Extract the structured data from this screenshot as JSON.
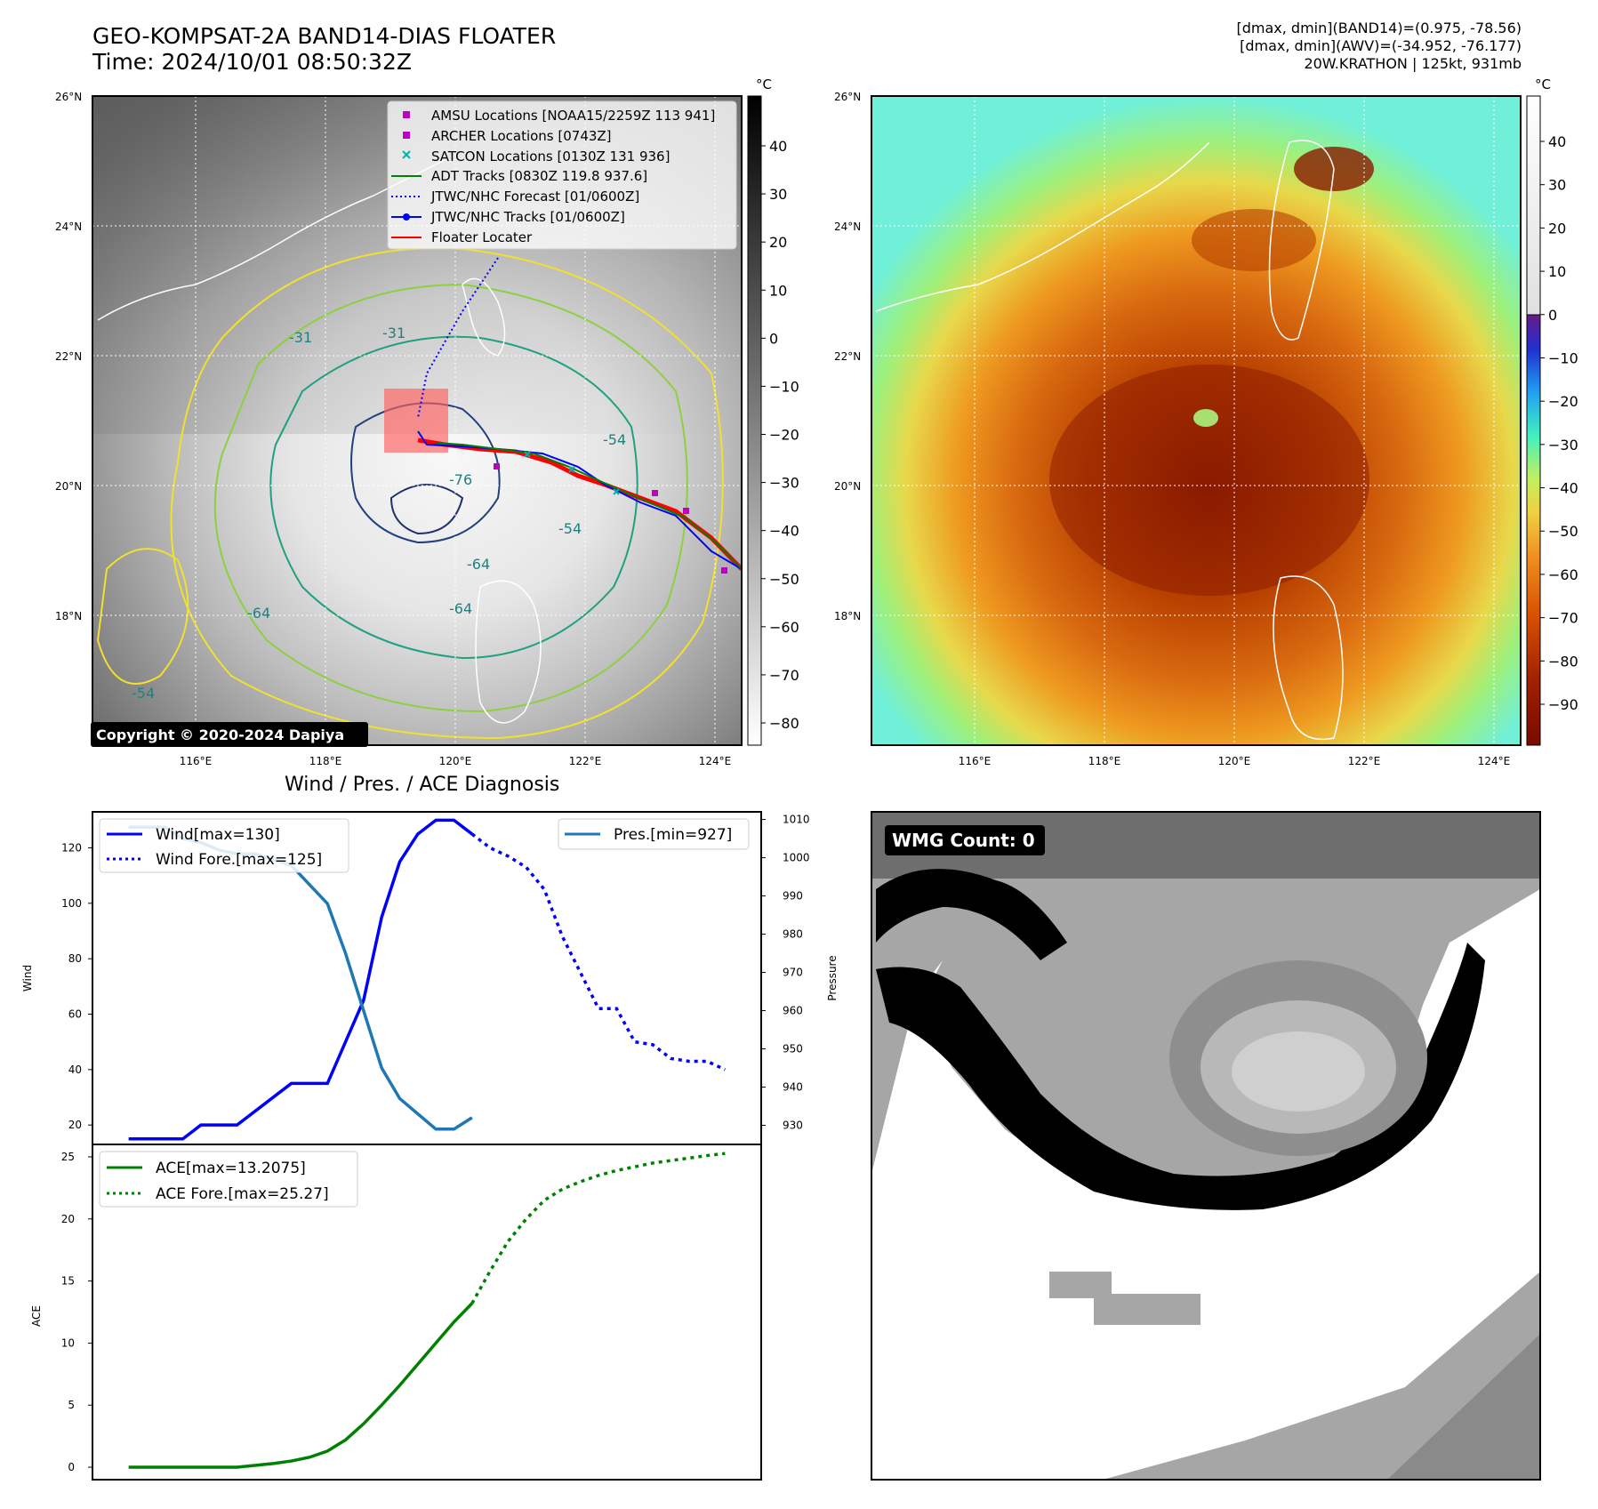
{
  "header": {
    "title_line1": "GEO-KOMPSAT-2A BAND14-DIAS FLOATER",
    "title_line2": "Time: 2024/10/01 08:50:32Z",
    "stats_line1": "[dmax, dmin](BAND14)=(0.975, -78.56)",
    "stats_line2": "[dmax, dmin](AWV)=(-34.952, -76.177)",
    "stats_line3": "20W.KRATHON | 125kt, 931mb"
  },
  "map_left": {
    "lat_labels": [
      "26°N",
      "24°N",
      "22°N",
      "20°N",
      "18°N"
    ],
    "lon_labels": [
      "116°E",
      "118°E",
      "120°E",
      "122°E",
      "124°E"
    ],
    "legend": [
      {
        "label": "AMSU Locations [NOAA15/2259Z 113 941]",
        "color": "#c000c0",
        "marker": "square"
      },
      {
        "label": "ARCHER Locations [0743Z]",
        "color": "#c000c0",
        "marker": "square"
      },
      {
        "label": "SATCON Locations [0130Z 131 936]",
        "color": "#00b0b0",
        "marker": "x"
      },
      {
        "label": "ADT Tracks [0830Z 119.8 937.6]",
        "color": "#008000",
        "marker": "line"
      },
      {
        "label": "JTWC/NHC Forecast [01/0600Z]",
        "color": "#0000ff",
        "marker": "dotted"
      },
      {
        "label": "JTWC/NHC Tracks [01/0600Z]",
        "color": "#0000ff",
        "marker": "line-dot"
      },
      {
        "label": "Floater Locater",
        "color": "#ff0000",
        "marker": "line"
      }
    ],
    "contour_labels": [
      "-31",
      "-31",
      "-54",
      "-54",
      "-64",
      "-64",
      "-64",
      "-76",
      "-54"
    ],
    "copyright": "Copyright © 2020-2024 Dapiya",
    "colorbar_unit": "°C",
    "colorbar_ticks": [
      "40",
      "30",
      "20",
      "10",
      "0",
      "−10",
      "−20",
      "−30",
      "−40",
      "−50",
      "−60",
      "−70",
      "−80"
    ]
  },
  "map_right": {
    "lat_labels": [
      "26°N",
      "24°N",
      "22°N",
      "20°N",
      "18°N"
    ],
    "lon_labels": [
      "116°E",
      "118°E",
      "120°E",
      "122°E",
      "124°E"
    ],
    "colorbar_unit": "°C",
    "colorbar_ticks": [
      "40",
      "30",
      "20",
      "10",
      "0",
      "−10",
      "−20",
      "−30",
      "−40",
      "−50",
      "−60",
      "−70",
      "−80",
      "−90"
    ]
  },
  "diagnosis_title": "Wind / Pres. / ACE Diagnosis",
  "wmg": {
    "label": "WMG Count: 0"
  },
  "chart_data": [
    {
      "type": "line",
      "ylabel": "Wind",
      "ylabel_right": "Pressure",
      "ylim": [
        13,
        133
      ],
      "ylim_right": [
        925,
        1012
      ],
      "yticks": [
        20,
        40,
        60,
        80,
        100,
        120
      ],
      "yticks_right": [
        930,
        940,
        950,
        960,
        970,
        980,
        990,
        1000,
        1010
      ],
      "legend_left": [
        "Wind[max=130]",
        "Wind Fore.[max=125]"
      ],
      "legend_right": [
        "Pres.[min=927]"
      ],
      "series": [
        {
          "name": "Wind[max=130]",
          "axis": "left",
          "color": "#0000ff",
          "style": "solid",
          "x": [
            0,
            3,
            4,
            6,
            9,
            11,
            13,
            14,
            15,
            16,
            17,
            18,
            19
          ],
          "values": [
            15,
            15,
            20,
            20,
            35,
            35,
            65,
            95,
            115,
            125,
            130,
            130,
            125
          ]
        },
        {
          "name": "Wind Fore.[max=125]",
          "axis": "left",
          "color": "#0000ff",
          "style": "dotted",
          "x": [
            19,
            20,
            21,
            22,
            23,
            24,
            25,
            26,
            27,
            28,
            29,
            30,
            31,
            32,
            33
          ],
          "values": [
            125,
            120,
            117,
            113,
            105,
            88,
            75,
            62,
            62,
            50,
            49,
            44,
            43,
            43,
            40
          ]
        },
        {
          "name": "Pres.[min=927]",
          "axis": "right",
          "color": "#1f77b4",
          "style": "solid",
          "x": [
            0,
            2,
            3,
            4,
            5,
            6,
            7,
            9,
            10,
            11,
            12,
            13,
            14,
            15,
            16,
            17,
            18,
            19
          ],
          "values": [
            1008,
            1008,
            1005,
            1004,
            1002,
            1001,
            1001,
            998,
            993,
            988,
            975,
            960,
            945,
            937,
            933,
            929,
            929,
            932
          ]
        }
      ]
    },
    {
      "type": "line",
      "ylabel": "ACE",
      "ylim": [
        -1,
        26
      ],
      "yticks": [
        0,
        5,
        10,
        15,
        20,
        25
      ],
      "legend_left": [
        "ACE[max=13.2075]",
        "ACE Fore.[max=25.27]"
      ],
      "series": [
        {
          "name": "ACE[max=13.2075]",
          "color": "#008000",
          "style": "solid",
          "x": [
            0,
            3,
            6,
            8,
            9,
            10,
            11,
            12,
            13,
            14,
            15,
            16,
            17,
            18,
            19
          ],
          "values": [
            0,
            0,
            0,
            0.3,
            0.5,
            0.8,
            1.3,
            2.2,
            3.5,
            5.0,
            6.6,
            8.3,
            10.0,
            11.7,
            13.2
          ]
        },
        {
          "name": "ACE Fore.[max=25.27]",
          "color": "#008000",
          "style": "dotted",
          "x": [
            19,
            20,
            21,
            22,
            23,
            24,
            25,
            26,
            27,
            28,
            29,
            30,
            31,
            32,
            33
          ],
          "values": [
            13.2,
            15.8,
            18.2,
            20.0,
            21.5,
            22.4,
            23.0,
            23.5,
            23.9,
            24.2,
            24.5,
            24.7,
            24.9,
            25.1,
            25.27
          ]
        }
      ]
    }
  ]
}
